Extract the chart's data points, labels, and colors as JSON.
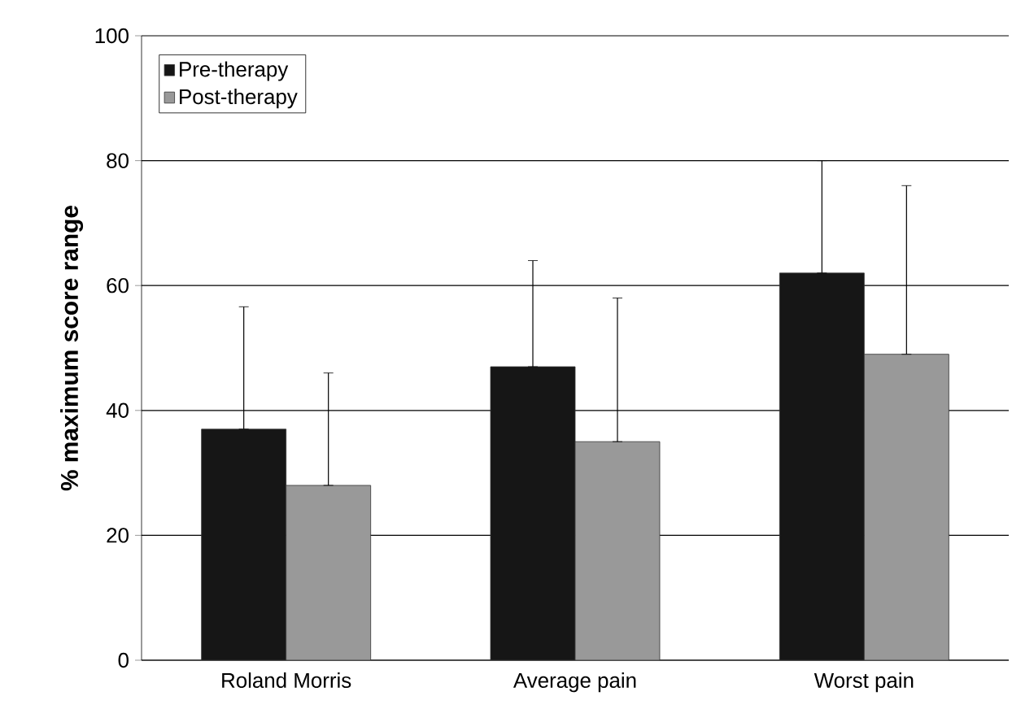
{
  "chart_data": {
    "type": "bar",
    "ylabel": "% maximum score range",
    "categories": [
      "Roland Morris",
      "Average pain",
      "Worst pain"
    ],
    "series": [
      {
        "name": "Pre-therapy",
        "color": "#161616",
        "values": [
          37,
          47,
          62
        ],
        "errors": [
          [
            37,
            56.6
          ],
          [
            47,
            64
          ],
          [
            62,
            80
          ]
        ]
      },
      {
        "name": "Post-therapy",
        "color": "#999999",
        "values": [
          28,
          35,
          49
        ],
        "errors": [
          [
            28,
            46
          ],
          [
            35,
            58
          ],
          [
            49,
            76
          ]
        ]
      }
    ],
    "ylim": [
      0,
      100
    ],
    "yticks": [
      0,
      20,
      40,
      60,
      80,
      100
    ],
    "grid": "y",
    "legend": "top left"
  }
}
